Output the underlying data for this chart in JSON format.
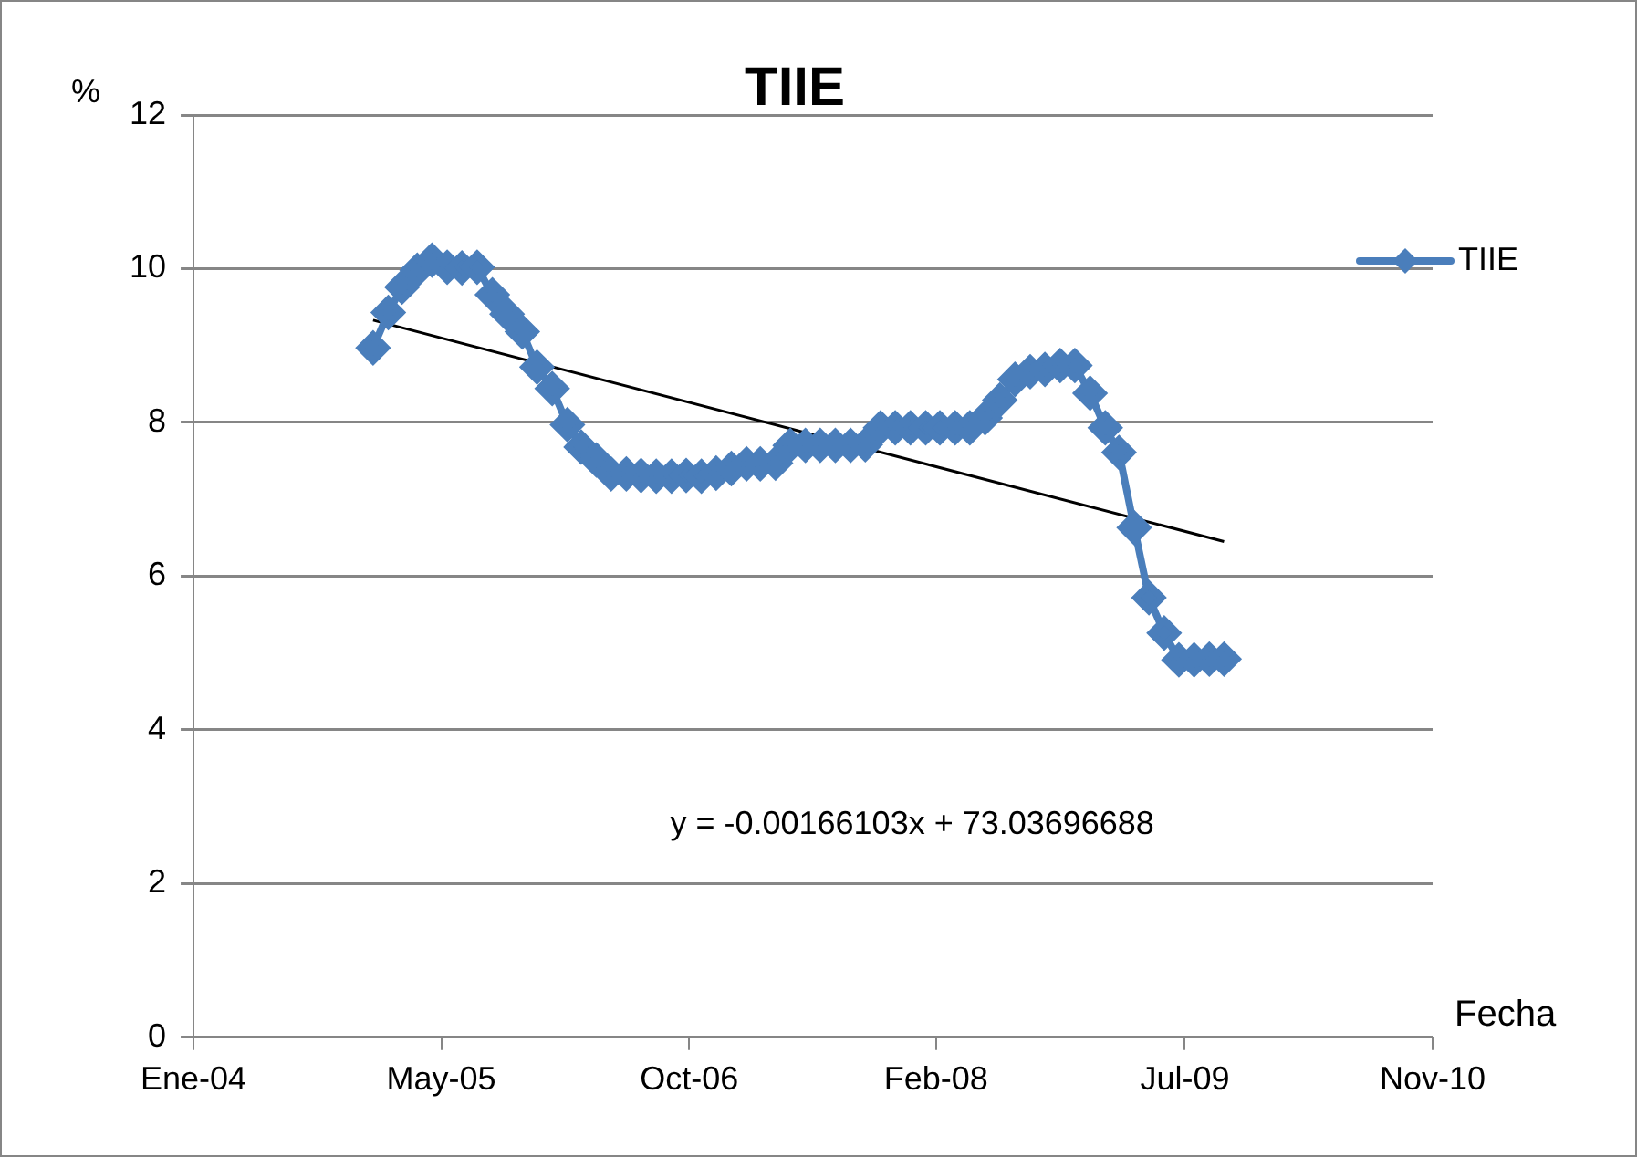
{
  "chart_data": {
    "type": "line",
    "title": "TIIE",
    "xlabel": "Fecha",
    "ylabel": "%",
    "x": [
      "2005-01-01",
      "2005-02-01",
      "2005-03-01",
      "2005-04-01",
      "2005-05-01",
      "2005-06-01",
      "2005-07-01",
      "2005-08-01",
      "2005-09-01",
      "2005-10-01",
      "2005-11-01",
      "2005-12-01",
      "2006-01-01",
      "2006-02-01",
      "2006-03-01",
      "2006-04-01",
      "2006-05-01",
      "2006-06-01",
      "2006-07-01",
      "2006-08-01",
      "2006-09-01",
      "2006-10-01",
      "2006-11-01",
      "2006-12-01",
      "2007-01-01",
      "2007-02-01",
      "2007-03-01",
      "2007-04-01",
      "2007-05-01",
      "2007-06-01",
      "2007-07-01",
      "2007-08-01",
      "2007-09-01",
      "2007-10-01",
      "2007-11-01",
      "2007-12-01",
      "2008-01-01",
      "2008-02-01",
      "2008-03-01",
      "2008-04-01",
      "2008-05-01",
      "2008-06-01",
      "2008-07-01",
      "2008-08-01",
      "2008-09-01",
      "2008-10-01",
      "2008-11-01",
      "2008-12-01",
      "2009-01-01",
      "2009-02-01",
      "2009-03-01",
      "2009-04-01",
      "2009-05-01",
      "2009-06-01",
      "2009-07-01",
      "2009-08-01",
      "2009-09-01",
      "2009-10-01"
    ],
    "series": [
      {
        "name": "TIIE",
        "color": "#4a7ebb",
        "marker": "diamond",
        "values": [
          8.97,
          9.43,
          9.76,
          9.98,
          10.11,
          10.02,
          10.01,
          10.02,
          9.66,
          9.41,
          9.18,
          8.72,
          8.44,
          7.97,
          7.68,
          7.51,
          7.33,
          7.33,
          7.31,
          7.3,
          7.3,
          7.31,
          7.3,
          7.34,
          7.4,
          7.46,
          7.46,
          7.47,
          7.7,
          7.7,
          7.7,
          7.7,
          7.7,
          7.71,
          7.93,
          7.93,
          7.93,
          7.93,
          7.93,
          7.93,
          7.93,
          8.06,
          8.29,
          8.56,
          8.66,
          8.69,
          8.74,
          8.74,
          8.38,
          7.93,
          7.61,
          6.63,
          5.72,
          5.26,
          4.91,
          4.91,
          4.92,
          4.92
        ]
      },
      {
        "type": "line",
        "color": "#000000",
        "marker": "none",
        "x": [
          "2005-01-01",
          "2009-10-01"
        ],
        "values": [
          9.33,
          6.45
        ]
      }
    ],
    "xlim": [
      "2004-01-01",
      "2010-11-30"
    ],
    "xticks": [
      {
        "value": "2004-01-01",
        "label": "Ene-04"
      },
      {
        "value": "2005-05-20",
        "label": "May-05"
      },
      {
        "value": "2006-10-07",
        "label": "Oct-06"
      },
      {
        "value": "2008-02-22",
        "label": "Feb-08"
      },
      {
        "value": "2009-07-13",
        "label": "Jul-09"
      },
      {
        "value": "2010-11-30",
        "label": "Nov-10"
      }
    ],
    "ylim": [
      0,
      12
    ],
    "yticks": [
      0,
      2,
      4,
      6,
      8,
      10,
      12
    ],
    "grid": "y",
    "legend": "right",
    "annotations": [
      "y = -0.00166103x + 73.03696688"
    ]
  }
}
